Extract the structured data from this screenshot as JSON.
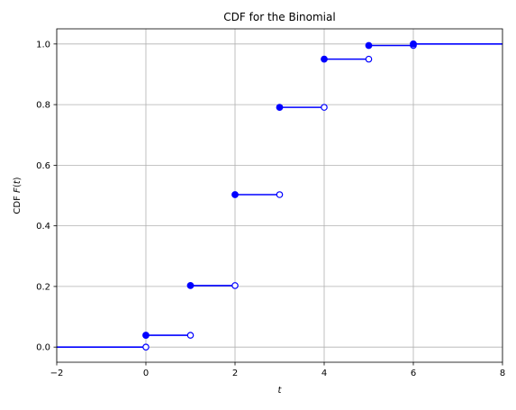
{
  "chart_data": {
    "type": "line",
    "title": "CDF for the Binomial",
    "xlabel": "t",
    "ylabel_prefix": "CDF ",
    "ylabel_func": "F",
    "ylabel_open": "(",
    "ylabel_var": "t",
    "ylabel_close": ")",
    "xlim": [
      -2,
      8
    ],
    "ylim": [
      -0.05,
      1.05
    ],
    "xticks": [
      -2,
      0,
      2,
      4,
      6,
      8
    ],
    "xtick_labels": [
      "−2",
      "0",
      "2",
      "4",
      "6",
      "8"
    ],
    "yticks": [
      0.0,
      0.2,
      0.4,
      0.6,
      0.8,
      1.0
    ],
    "ytick_labels": [
      "0.0",
      "0.2",
      "0.4",
      "0.6",
      "0.8",
      "1.0"
    ],
    "grid": true,
    "series_color": "#0000ff",
    "steps": [
      {
        "x_start": -2,
        "x_end": 0,
        "y": 0.0
      },
      {
        "x_start": 0,
        "x_end": 1,
        "y": 0.039
      },
      {
        "x_start": 1,
        "x_end": 2,
        "y": 0.203
      },
      {
        "x_start": 2,
        "x_end": 3,
        "y": 0.503
      },
      {
        "x_start": 3,
        "x_end": 4,
        "y": 0.791
      },
      {
        "x_start": 4,
        "x_end": 5,
        "y": 0.95
      },
      {
        "x_start": 5,
        "x_end": 6,
        "y": 0.995
      },
      {
        "x_start": 6,
        "x_end": 8,
        "y": 1.0
      }
    ],
    "closed_points": [
      {
        "x": 0,
        "y": 0.039
      },
      {
        "x": 1,
        "y": 0.203
      },
      {
        "x": 2,
        "y": 0.503
      },
      {
        "x": 3,
        "y": 0.791
      },
      {
        "x": 4,
        "y": 0.95
      },
      {
        "x": 5,
        "y": 0.995
      },
      {
        "x": 6,
        "y": 1.0
      }
    ],
    "open_points": [
      {
        "x": 0,
        "y": 0.0
      },
      {
        "x": 1,
        "y": 0.039
      },
      {
        "x": 2,
        "y": 0.203
      },
      {
        "x": 3,
        "y": 0.503
      },
      {
        "x": 4,
        "y": 0.791
      },
      {
        "x": 5,
        "y": 0.95
      },
      {
        "x": 6,
        "y": 0.995
      }
    ]
  }
}
